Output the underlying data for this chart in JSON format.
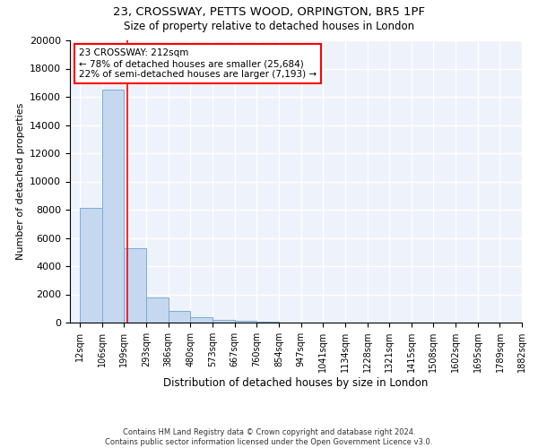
{
  "title1": "23, CROSSWAY, PETTS WOOD, ORPINGTON, BR5 1PF",
  "title2": "Size of property relative to detached houses in London",
  "xlabel": "Distribution of detached houses by size in London",
  "ylabel": "Number of detached properties",
  "bar_color": "#c5d8f0",
  "bar_edge_color": "#7aadd4",
  "background_color": "#eef2fa",
  "grid_color": "#ffffff",
  "annotation_text": "23 CROSSWAY: 212sqm\n← 78% of detached houses are smaller (25,684)\n22% of semi-detached houses are larger (7,193) →",
  "property_size": 212,
  "bin_edges": [
    12,
    106,
    199,
    293,
    386,
    480,
    573,
    667,
    760,
    854,
    947,
    1041,
    1134,
    1228,
    1321,
    1415,
    1508,
    1602,
    1695,
    1789,
    1882
  ],
  "bar_heights": [
    8100,
    16500,
    5300,
    1800,
    800,
    350,
    200,
    150,
    80,
    0,
    0,
    0,
    0,
    0,
    0,
    0,
    0,
    0,
    0,
    0
  ],
  "x_tick_labels": [
    "12sqm",
    "106sqm",
    "199sqm",
    "293sqm",
    "386sqm",
    "480sqm",
    "573sqm",
    "667sqm",
    "760sqm",
    "854sqm",
    "947sqm",
    "1041sqm",
    "1134sqm",
    "1228sqm",
    "1321sqm",
    "1415sqm",
    "1508sqm",
    "1602sqm",
    "1695sqm",
    "1789sqm",
    "1882sqm"
  ],
  "ylim": [
    0,
    20000
  ],
  "yticks": [
    0,
    2000,
    4000,
    6000,
    8000,
    10000,
    12000,
    14000,
    16000,
    18000,
    20000
  ],
  "footnote": "Contains HM Land Registry data © Crown copyright and database right 2024.\nContains public sector information licensed under the Open Government Licence v3.0."
}
